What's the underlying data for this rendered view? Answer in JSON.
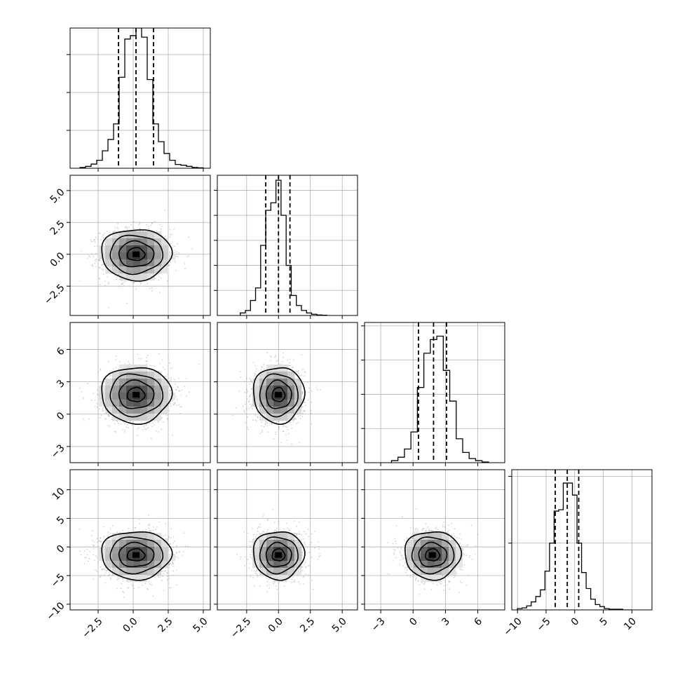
{
  "chart_data": {
    "type": "corner",
    "grid": true,
    "parameters": [
      {
        "range": [
          -4.5,
          5.5
        ],
        "ticks": [
          -2.5,
          0.0,
          2.5,
          5.0
        ],
        "tick_labels": [
          "−2.5",
          "0.0",
          "2.5",
          "5.0"
        ],
        "quantiles": [
          -1.05,
          0.2,
          1.45
        ],
        "hist_ylim": [
          0,
          0.37
        ],
        "hist_yticks": [
          0.1,
          0.2,
          0.3
        ],
        "bin_edges": [
          -3.8,
          -3.4,
          -3.0,
          -2.6,
          -2.2,
          -1.8,
          -1.4,
          -1.0,
          -0.6,
          -0.2,
          0.2,
          0.6,
          1.0,
          1.4,
          1.8,
          2.2,
          2.6,
          3.0,
          3.4,
          3.8,
          4.2,
          4.6,
          5.0
        ],
        "hist_values": [
          0.002,
          0.005,
          0.011,
          0.021,
          0.046,
          0.076,
          0.117,
          0.24,
          0.341,
          0.35,
          0.37,
          0.346,
          0.234,
          0.117,
          0.07,
          0.039,
          0.021,
          0.01,
          0.008,
          0.005,
          0.002,
          0.001
        ],
        "mean": 0.2,
        "std": 1.25
      },
      {
        "range": [
          -4.8,
          6.2
        ],
        "ticks": [
          -2.5,
          0.0,
          2.5,
          5.0
        ],
        "tick_labels": [
          "−2.5",
          "0.0",
          "2.5",
          "5.0"
        ],
        "quantiles": [
          -1.0,
          0.0,
          0.9
        ],
        "hist_ylim": [
          0,
          0.56
        ],
        "hist_yticks": [
          0.1,
          0.2,
          0.3,
          0.4,
          0.5
        ],
        "bin_edges": [
          -3.0,
          -2.6,
          -2.2,
          -1.8,
          -1.4,
          -1.0,
          -0.6,
          -0.2,
          0.2,
          0.6,
          1.0,
          1.4,
          1.8,
          2.2,
          2.6,
          3.0,
          3.4,
          3.8
        ],
        "hist_values": [
          0.01,
          0.02,
          0.06,
          0.11,
          0.28,
          0.42,
          0.45,
          0.54,
          0.4,
          0.2,
          0.08,
          0.04,
          0.02,
          0.01,
          0.005,
          0.002,
          0.001
        ],
        "mean": 0.0,
        "std": 1.0
      },
      {
        "range": [
          -4.5,
          8.5
        ],
        "ticks": [
          -3,
          0,
          3,
          6
        ],
        "tick_labels": [
          "−3",
          "0",
          "3",
          "6"
        ],
        "quantiles": [
          0.5,
          1.9,
          3.1
        ],
        "hist_ylim": [
          0,
          0.205
        ],
        "hist_yticks": [
          0.05,
          0.1,
          0.15,
          0.2
        ],
        "bin_edges": [
          -2.0,
          -1.4,
          -0.8,
          -0.2,
          0.4,
          1.0,
          1.6,
          2.2,
          2.8,
          3.4,
          4.0,
          4.6,
          5.2,
          5.8,
          6.4,
          7.0
        ],
        "hist_values": [
          0.003,
          0.008,
          0.02,
          0.045,
          0.11,
          0.16,
          0.18,
          0.185,
          0.135,
          0.09,
          0.035,
          0.015,
          0.006,
          0.003,
          0.001
        ],
        "mean": 1.8,
        "std": 1.3
      },
      {
        "range": [
          -11,
          13.5
        ],
        "ticks": [
          -10,
          -5,
          0,
          5,
          10
        ],
        "tick_labels": [
          "−10",
          "−5",
          "0",
          "5",
          "10"
        ],
        "quantiles": [
          -3.4,
          -1.3,
          0.7
        ],
        "hist_ylim": [
          0,
          0.21
        ],
        "hist_yticks": [
          0.1,
          0.2
        ],
        "bin_edges": [
          -10.0,
          -9.2,
          -8.4,
          -7.6,
          -6.8,
          -6.0,
          -5.2,
          -4.4,
          -3.6,
          -2.8,
          -2.0,
          -1.2,
          -0.4,
          0.4,
          1.2,
          2.0,
          2.8,
          3.6,
          4.4,
          5.2,
          6.0,
          6.8,
          7.6,
          8.4,
          9.2,
          10.0
        ],
        "hist_values": [
          0.002,
          0.003,
          0.006,
          0.012,
          0.02,
          0.03,
          0.058,
          0.1,
          0.148,
          0.15,
          0.19,
          0.19,
          0.172,
          0.1,
          0.056,
          0.032,
          0.016,
          0.008,
          0.005,
          0.002,
          0.001,
          0.001,
          0.001,
          0.0,
          0.0
        ],
        "mean": -1.4,
        "std": 2.1
      }
    ]
  }
}
